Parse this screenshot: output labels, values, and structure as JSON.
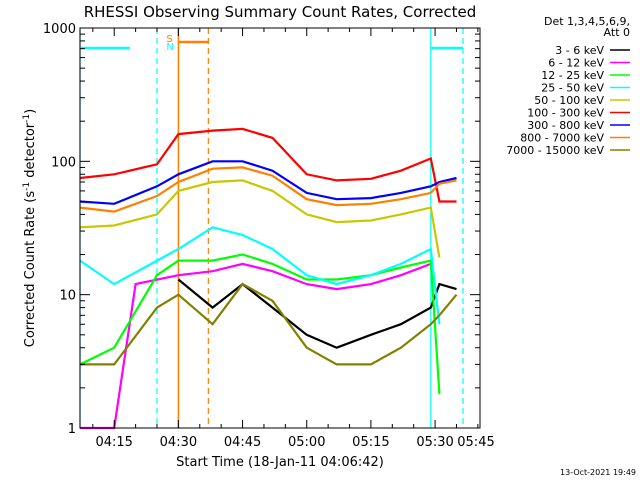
{
  "chart_data": {
    "type": "line",
    "title": "RHESSI Observing Summary Count Rates, Corrected",
    "xlabel": "Start Time (18-Jan-11 04:06:42)",
    "ylabel": "Corrected Count Rate (s⁻¹ detector⁻¹)",
    "ylabel_parts": [
      "Corrected Count Rate (s",
      "-1",
      " detector",
      "-1",
      ")"
    ],
    "yscale": "log",
    "ylim": [
      1,
      1000
    ],
    "xlim_minutes": [
      7,
      100.5
    ],
    "x_ticks": [
      {
        "minute": 15,
        "label": "04:15"
      },
      {
        "minute": 30,
        "label": "04:30"
      },
      {
        "minute": 45,
        "label": "04:45"
      },
      {
        "minute": 60,
        "label": "05:00"
      },
      {
        "minute": 75,
        "label": "05:15"
      },
      {
        "minute": 90,
        "label": "05:30"
      },
      {
        "minute": 105,
        "label": "05:45"
      }
    ],
    "y_ticks": [
      {
        "value": 1,
        "label": "1"
      },
      {
        "value": 10,
        "label": "10"
      },
      {
        "value": 100,
        "label": "100"
      },
      {
        "value": 1000,
        "label": "1000"
      }
    ],
    "legend_header": [
      "Det 1,3,4,5,6,9,",
      "Att 0"
    ],
    "legend_placement": "right",
    "timestamp": "13-Oct-2021 19:49",
    "markers": [
      {
        "label": "S",
        "color": "#ff8000"
      },
      {
        "label": "N",
        "color": "#00ffff"
      }
    ],
    "night_start_minutes": [
      7,
      89
    ],
    "night_end_minutes": [
      25,
      107
    ],
    "saa_window_minutes": [
      30,
      37
    ],
    "series": [
      {
        "name": "3 - 6 keV",
        "color": "#000000",
        "x": [
          30,
          38,
          45,
          52,
          60,
          67,
          75,
          82,
          89,
          91,
          95,
          100
        ],
        "y": [
          13,
          8,
          12,
          8,
          5,
          4,
          5,
          6,
          8,
          12,
          11,
          10
        ]
      },
      {
        "name": "6 - 12 keV",
        "color": "#ff00ff",
        "x": [
          7,
          15,
          20,
          30,
          38,
          45,
          52,
          60,
          67,
          75,
          82,
          89
        ],
        "y": [
          1,
          1,
          12,
          14,
          15,
          17,
          15,
          12,
          11,
          12,
          14,
          17
        ]
      },
      {
        "name": "12 - 25 keV",
        "color": "#00ff00",
        "x": [
          7,
          15,
          25,
          30,
          38,
          45,
          52,
          60,
          67,
          75,
          82,
          89,
          91,
          100
        ],
        "y": [
          3,
          4,
          14,
          18,
          18,
          20,
          17,
          13,
          13,
          14,
          16,
          18,
          1.8,
          1.8
        ]
      },
      {
        "name": "25 - 50 keV",
        "color": "#00ffff",
        "x": [
          7,
          15,
          25,
          30,
          38,
          45,
          52,
          60,
          67,
          75,
          82,
          89,
          91,
          100
        ],
        "y": [
          18,
          12,
          18,
          22,
          32,
          28,
          22,
          14,
          12,
          14,
          17,
          22,
          6,
          6
        ]
      },
      {
        "name": "50 - 100 keV",
        "color": "#c8c800",
        "x": [
          7,
          15,
          25,
          30,
          38,
          45,
          52,
          60,
          67,
          75,
          82,
          89,
          91,
          100
        ],
        "y": [
          32,
          33,
          40,
          60,
          70,
          72,
          60,
          40,
          35,
          36,
          40,
          45,
          19,
          18
        ]
      },
      {
        "name": "100 - 300 keV",
        "color": "#ff0000",
        "x": [
          7,
          15,
          25,
          30,
          38,
          45,
          52,
          60,
          67,
          75,
          82,
          89,
          91,
          95,
          100
        ],
        "y": [
          75,
          80,
          95,
          160,
          170,
          175,
          150,
          80,
          72,
          74,
          85,
          105,
          50,
          50,
          48
        ]
      },
      {
        "name": "300 - 800 keV",
        "color": "#0000ff",
        "x": [
          7,
          15,
          25,
          30,
          38,
          45,
          52,
          60,
          67,
          75,
          82,
          89,
          91,
          95,
          100
        ],
        "y": [
          50,
          48,
          65,
          80,
          100,
          100,
          85,
          58,
          52,
          53,
          58,
          65,
          70,
          75,
          68
        ]
      },
      {
        "name": "800 - 7000 keV",
        "color": "#ff8000",
        "x": [
          7,
          15,
          25,
          30,
          38,
          45,
          52,
          60,
          67,
          75,
          82,
          89,
          91,
          95,
          100
        ],
        "y": [
          45,
          42,
          55,
          70,
          88,
          90,
          78,
          52,
          47,
          48,
          52,
          58,
          68,
          72,
          63
        ]
      },
      {
        "name": "7000 - 15000 keV",
        "color": "#808000",
        "x": [
          7,
          15,
          25,
          30,
          38,
          45,
          52,
          60,
          67,
          75,
          82,
          89,
          91,
          95,
          100
        ],
        "y": [
          3,
          3,
          8,
          10,
          6,
          12,
          9,
          4,
          3,
          3,
          4,
          6,
          7,
          10,
          9
        ]
      }
    ]
  }
}
